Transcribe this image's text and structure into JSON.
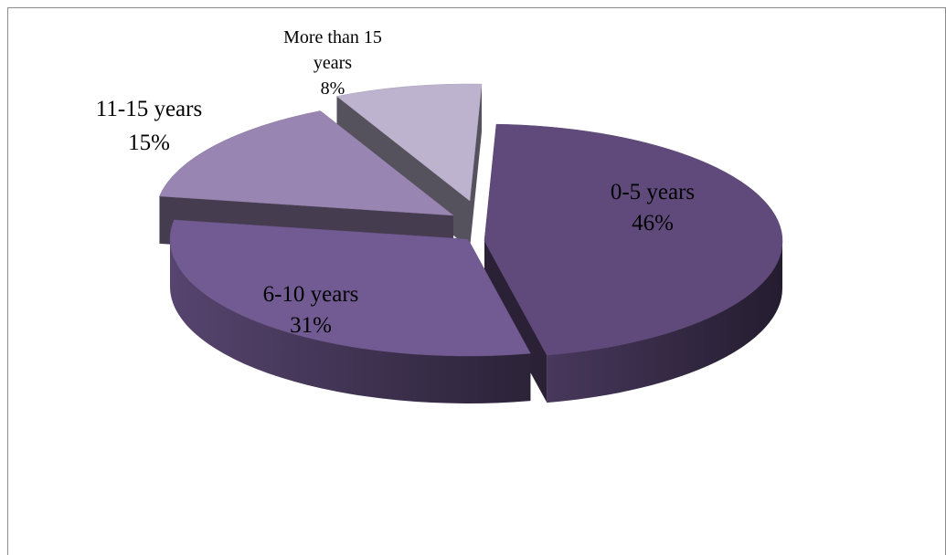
{
  "chart_data": {
    "type": "pie",
    "style": "3d-exploded",
    "legend": "none",
    "slices": [
      {
        "label": "0-5 years",
        "value": 46,
        "value_text": "46%",
        "color": "#604a7b"
      },
      {
        "label": "6-10 years",
        "value": 31,
        "value_text": "31%",
        "color": "#725b93"
      },
      {
        "label": "11-15 years",
        "value": 15,
        "value_text": "15%",
        "color": "#9985b2"
      },
      {
        "label": "More than 15 years",
        "label_lines": [
          "More than 15",
          "years"
        ],
        "value": 8,
        "value_text": "8%",
        "color": "#bdb3cf"
      }
    ]
  }
}
